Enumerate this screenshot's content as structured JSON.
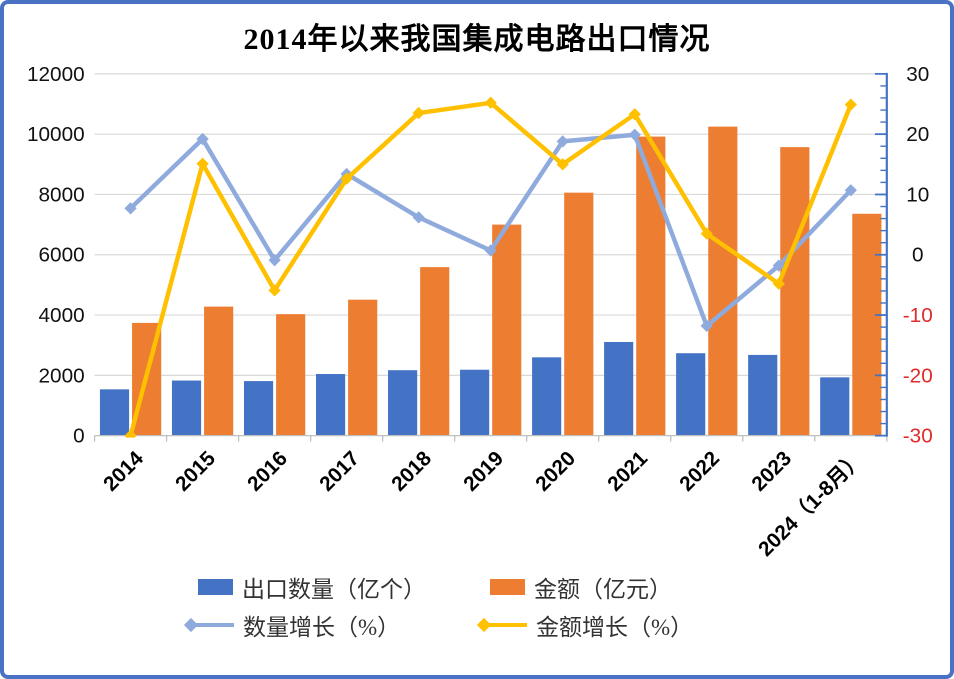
{
  "title": "2014年以来我国集成电路出口情况",
  "frame": {
    "border_color": "#4a72c4",
    "background": "#ffffff"
  },
  "chart_data": {
    "type": "bar",
    "subtype": "column-line combo, dual axis",
    "title": "2014年以来我国集成电路出口情况",
    "categories": [
      "2014",
      "2015",
      "2016",
      "2017",
      "2018",
      "2019",
      "2020",
      "2021",
      "2022",
      "2023",
      "2024（1-8月）"
    ],
    "series": [
      {
        "key": "export-quantity",
        "name": "出口数量（亿个）",
        "type": "column",
        "axis": "left",
        "color": "#4472C4",
        "values": [
          1536,
          1828,
          1810,
          2044,
          2171,
          2187,
          2598,
          3107,
          2734,
          2678,
          1934
        ]
      },
      {
        "key": "export-amount",
        "name": "金额（亿元）",
        "type": "column",
        "axis": "left",
        "color": "#ED7D31",
        "values": [
          3740,
          4280,
          4030,
          4510,
          5590,
          7000,
          8060,
          9920,
          10250,
          9570,
          7360
        ]
      },
      {
        "key": "quantity-growth",
        "name": "数量增长（%）",
        "type": "line",
        "axis": "right",
        "color": "#8FAADC",
        "values": [
          7.7,
          19.2,
          -0.9,
          13.4,
          6.2,
          0.7,
          18.8,
          19.9,
          -11.8,
          -1.8,
          10.7
        ]
      },
      {
        "key": "amount-growth",
        "name": "金额增长（%）",
        "type": "line",
        "axis": "right",
        "color": "#FFC000",
        "values": [
          -30,
          15.1,
          -5.9,
          12.6,
          23.5,
          25.2,
          15.0,
          23.3,
          3.5,
          -4.8,
          24.9
        ]
      }
    ],
    "left_axis": {
      "min": 0,
      "max": 12000,
      "step": 2000,
      "tick_labels": [
        "0",
        "2000",
        "4000",
        "6000",
        "8000",
        "10000",
        "12000"
      ],
      "label_color": "#111111"
    },
    "right_axis": {
      "min": -30,
      "max": 30,
      "major_step": 10,
      "minor_step": 2,
      "tick_labels": [
        "30",
        "20",
        "10",
        "0",
        "-10",
        "-20",
        "-30"
      ],
      "positive_color": "#111111",
      "negative_color": "#E02B2B",
      "line_color": "#4472C4"
    },
    "x_axis": {
      "line_color": "#BFBFBF",
      "label_rotation_deg": -45,
      "label_color": "#000000"
    },
    "gridline_color": "#D9D9D9",
    "grid": "horizontal major gridlines on",
    "legend": {
      "position": "bottom",
      "entries": [
        {
          "label": "出口数量（亿个）",
          "swatch": "square",
          "color": "#4472C4"
        },
        {
          "label": "金额（亿元）",
          "swatch": "square",
          "color": "#ED7D31"
        },
        {
          "label": "数量增长（%）",
          "swatch": "line-diamond",
          "color": "#8FAADC"
        },
        {
          "label": "金额增长（%）",
          "swatch": "line-diamond",
          "color": "#FFC000"
        }
      ]
    }
  }
}
